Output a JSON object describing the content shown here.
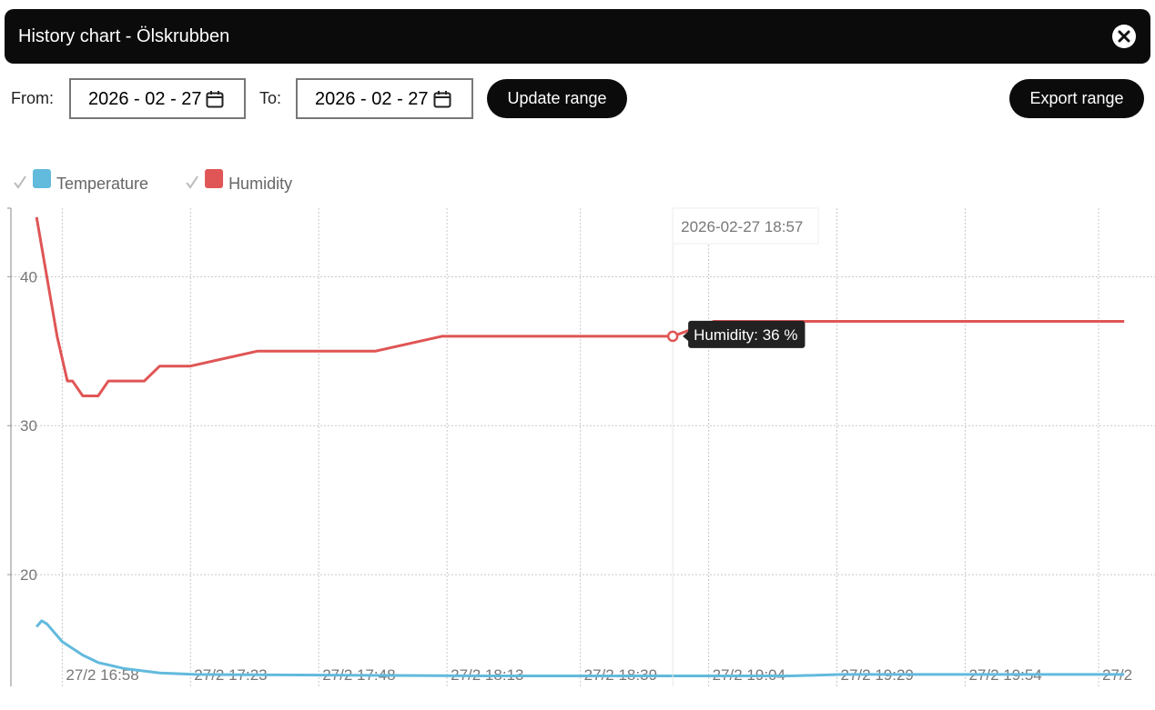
{
  "header": {
    "title": "History chart - Ölskrubben"
  },
  "controls": {
    "from_label": "From:",
    "from_value": "2026 - 02 - 27",
    "to_label": "To:",
    "to_value": "2026 - 02 - 27",
    "update_button": "Update range",
    "export_button": "Export range"
  },
  "chart_data": {
    "type": "line",
    "series": [
      {
        "name": "Temperature",
        "color": "#62badd",
        "x": [
          "2026-02-27 16:53",
          "2026-02-27 16:54",
          "2026-02-27 16:55",
          "2026-02-27 16:58",
          "2026-02-27 17:02",
          "2026-02-27 17:05",
          "2026-02-27 17:10",
          "2026-02-27 17:17",
          "2026-02-27 17:24",
          "2026-02-27 18:20",
          "2026-02-27 19:20",
          "2026-02-27 19:30",
          "2026-02-27 20:25"
        ],
        "values": [
          16.5,
          16.9,
          16.7,
          15.5,
          14.6,
          14.1,
          13.7,
          13.4,
          13.3,
          13.2,
          13.2,
          13.3,
          13.3
        ]
      },
      {
        "name": "Humidity",
        "color": "#e05555",
        "x": [
          "2026-02-27 16:53",
          "2026-02-27 16:54",
          "2026-02-27 16:57",
          "2026-02-27 16:59",
          "2026-02-27 17:00",
          "2026-02-27 17:02",
          "2026-02-27 17:05",
          "2026-02-27 17:07",
          "2026-02-27 17:14",
          "2026-02-27 17:17",
          "2026-02-27 17:23",
          "2026-02-27 17:36",
          "2026-02-27 17:59",
          "2026-02-27 18:12",
          "2026-02-27 18:57",
          "2026-02-27 19:05",
          "2026-02-27 20:25"
        ],
        "values": [
          44,
          42,
          36,
          33,
          33,
          32,
          32,
          33,
          33,
          34,
          34,
          35,
          35,
          36,
          36,
          37,
          37
        ]
      }
    ],
    "xlim": [
      "2026-02-27 16:48",
      "2026-02-27 20:31"
    ],
    "xticks": [
      {
        "value": "2026-02-27 16:58",
        "label": "27/2 16:58"
      },
      {
        "value": "2026-02-27 17:23",
        "label": "27/2 17:23"
      },
      {
        "value": "2026-02-27 17:48",
        "label": "27/2 17:48"
      },
      {
        "value": "2026-02-27 18:13",
        "label": "27/2 18:13"
      },
      {
        "value": "2026-02-27 18:39",
        "label": "27/2 18:39"
      },
      {
        "value": "2026-02-27 19:04",
        "label": "27/2 19:04"
      },
      {
        "value": "2026-02-27 19:29",
        "label": "27/2 19:29"
      },
      {
        "value": "2026-02-27 19:54",
        "label": "27/2 19:54"
      },
      {
        "value": "2026-02-27 20:20",
        "label": "27/2"
      }
    ],
    "ylim": [
      12.5,
      44.6
    ],
    "yticks": [
      20,
      30,
      40
    ],
    "grid": true,
    "legend": "top-left",
    "tooltip_title": "2026-02-27 18:57",
    "tooltip_label": "Humidity: 36 %"
  }
}
